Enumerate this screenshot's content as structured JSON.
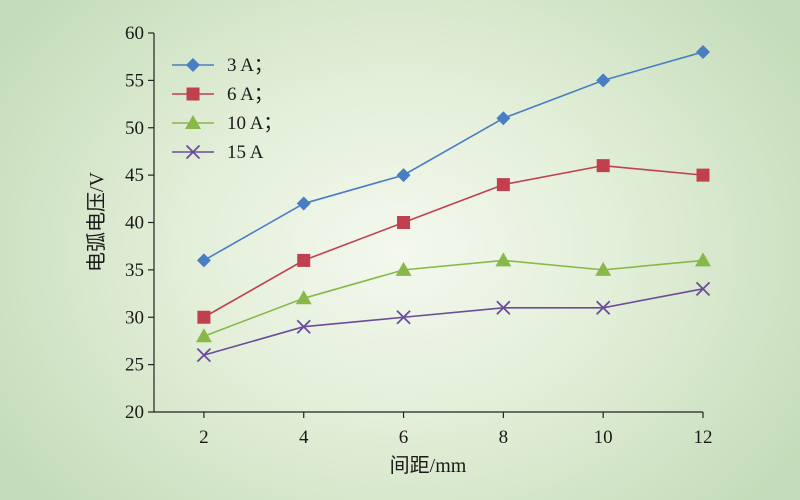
{
  "chart_data": {
    "type": "line",
    "xlabel": "间距/mm",
    "ylabel": "电弧电压/V",
    "x": [
      2,
      4,
      6,
      8,
      10,
      12
    ],
    "xticks": [
      2,
      4,
      6,
      8,
      10,
      12
    ],
    "xlim": [
      1,
      12
    ],
    "ylim": [
      20,
      60
    ],
    "yticks": [
      20,
      25,
      30,
      35,
      40,
      45,
      50,
      55,
      60
    ],
    "grid": false,
    "legend": "top-left",
    "series": [
      {
        "name": "3 A；",
        "marker": "diamond",
        "color": "#4a7ec2",
        "values": [
          36,
          42,
          45,
          51,
          55,
          58
        ]
      },
      {
        "name": "6 A；",
        "marker": "square",
        "color": "#c0404e",
        "values": [
          30,
          36,
          40,
          44,
          46,
          45
        ]
      },
      {
        "name": "10 A；",
        "marker": "triangle",
        "color": "#88b84a",
        "values": [
          28,
          32,
          35,
          36,
          35,
          36
        ]
      },
      {
        "name": "15 A",
        "marker": "x",
        "color": "#6a4c9a",
        "values": [
          26,
          29,
          30,
          31,
          31,
          33
        ]
      }
    ]
  }
}
